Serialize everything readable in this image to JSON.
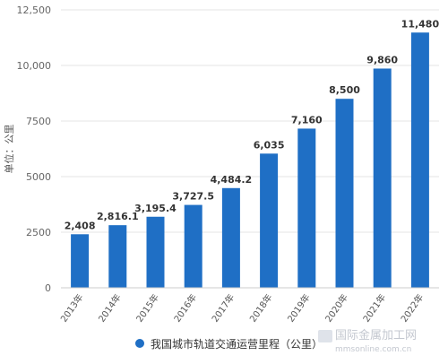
{
  "chart_data": {
    "type": "bar",
    "categories": [
      "2013年",
      "2014年",
      "2015年",
      "2016年",
      "2017年",
      "2018年",
      "2019年",
      "2020年",
      "2021年",
      "2022年"
    ],
    "series": [
      {
        "name": "我国城市轨道交通运营里程（公里）",
        "values": [
          2408,
          2816.1,
          3195.4,
          3727.5,
          4484.2,
          6035,
          7160,
          8500,
          9860,
          11480
        ],
        "labels": [
          "2,408",
          "2,816.1",
          "3,195.4",
          "3,727.5",
          "4,484.2",
          "6,035",
          "7,160",
          "8,500",
          "9,860",
          "11,480"
        ]
      }
    ],
    "ylabel": "单位：公里",
    "ylim": [
      0,
      12500
    ],
    "yticks": [
      0,
      2500,
      5000,
      7500,
      10000,
      12500
    ],
    "ytick_labels": [
      "0",
      "2500",
      "5000",
      "7500",
      "10,000",
      "12,500"
    ],
    "grid": true,
    "legend": "bottom-center",
    "bar_color": "#1f6fc5",
    "grid_color": "#e6e6e6",
    "legend_dot_color": "#1f6fc5"
  },
  "watermark": {
    "text": "国际金属加工网",
    "subtext": "mmsonline.com.cn"
  }
}
